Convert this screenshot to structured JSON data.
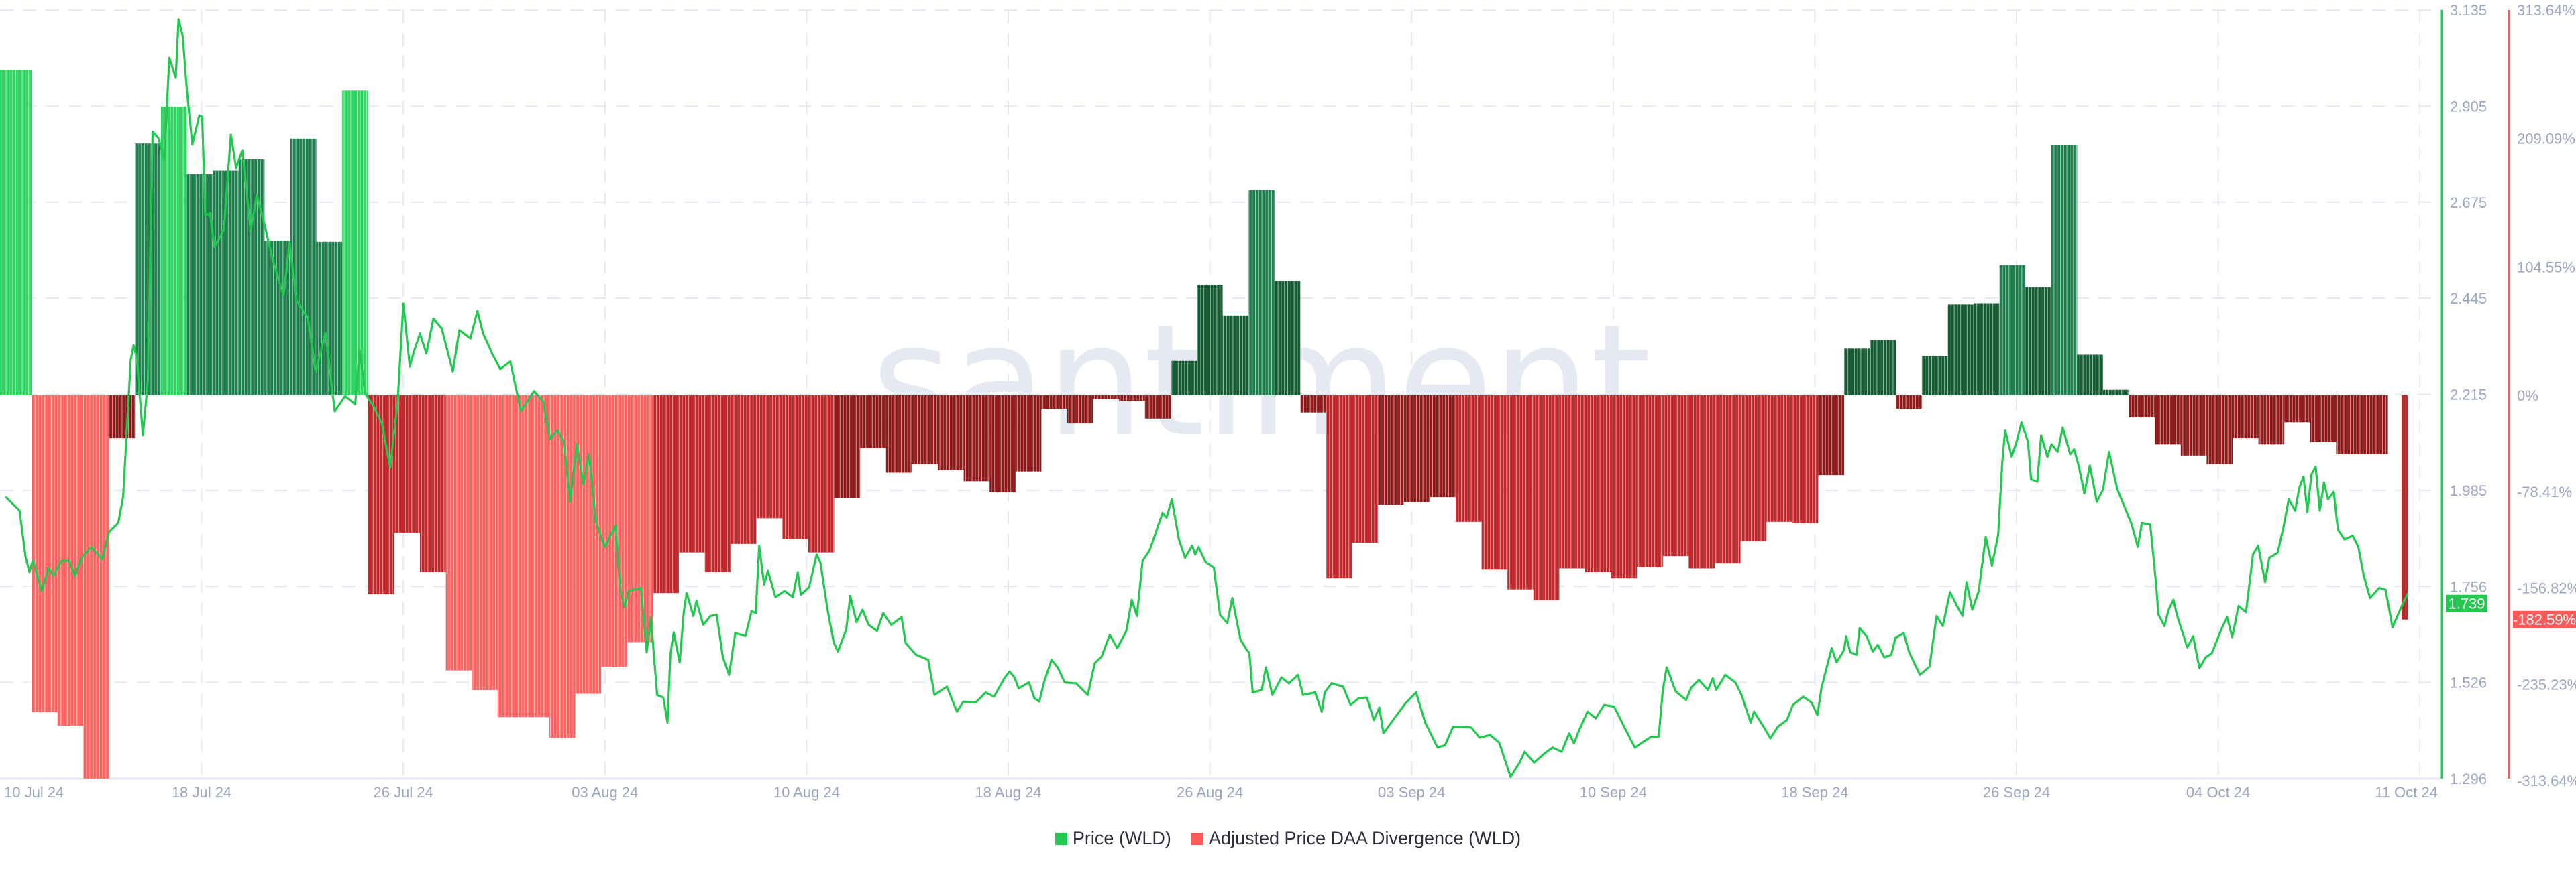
{
  "watermark": ".santiment.",
  "colors": {
    "price_line": "#22c84f",
    "price_axis": "#22c84f",
    "divergence_axis": "#ff5a5a",
    "green_high": "#2fd35f",
    "green_mid": "#1f7f4e",
    "green_low": "#165c33",
    "red_high": "#ff6262",
    "red_mid": "#c0282a",
    "red_low": "#8e1a1a",
    "grid": "#e6e8f2"
  },
  "chart_data": {
    "type": "bar+line",
    "title": "",
    "x_ticks": [
      "10 Jul 24",
      "18 Jul 24",
      "26 Jul 24",
      "03 Aug 24",
      "10 Aug 24",
      "18 Aug 24",
      "26 Aug 24",
      "03 Sep 24",
      "10 Sep 24",
      "18 Sep 24",
      "26 Sep 24",
      "04 Oct 24",
      "11 Oct 24"
    ],
    "x_unit": "days since 10 Jul 24",
    "price_axis": {
      "label": "Price (WLD)",
      "ylim": [
        1.296,
        3.135
      ],
      "ticks": [
        "3.135",
        "2.905",
        "2.675",
        "2.445",
        "2.215",
        "1.985",
        "1.756",
        "1.526",
        "1.296"
      ],
      "current": "1.739",
      "current_value": 1.739
    },
    "divergence_axis": {
      "label": "Adjusted Price DAA Divergence (WLD)",
      "ylim": [
        -313.64,
        313.64
      ],
      "ticks": [
        "313.64%",
        "209.09%",
        "104.55%",
        "0%",
        "-78.41%",
        "-156.82%",
        "-235.23%",
        "-313.64%"
      ],
      "tick_values": [
        313.64,
        209.09,
        104.55,
        0,
        -78.41,
        -156.82,
        -235.23,
        -313.64
      ],
      "current": "-182.59%"
    },
    "legend": [
      {
        "name": "Price (WLD)",
        "color": "#22c84f"
      },
      {
        "name": "Adjusted Price DAA Divergence (WLD)",
        "color": "#ff5a5a"
      }
    ],
    "legend_position": "bottom-center",
    "grid": true,
    "divergence_daily": [
      265,
      -258,
      -269,
      -313,
      -35,
      205,
      235,
      180,
      183,
      192,
      126,
      209,
      125,
      248,
      -162,
      -112,
      -144,
      -224,
      -240,
      -262,
      -262,
      -279,
      -243,
      -221,
      -201,
      -161,
      -128,
      -144,
      -121,
      -100,
      -117,
      -128,
      -84,
      -43,
      -63,
      -56,
      -61,
      -70,
      -79,
      -62,
      -11,
      -23,
      -3,
      -4.5,
      -19,
      28,
      90,
      65,
      167,
      93,
      -14,
      -149,
      -120,
      -89,
      -87,
      -83,
      -103,
      -142,
      -158,
      -167,
      -141,
      -144,
      -149,
      -140,
      -131,
      -141,
      -137,
      -119,
      -103,
      -104,
      -65,
      38,
      45,
      -11,
      32,
      74,
      75,
      106,
      88,
      204,
      33,
      4.5,
      -18,
      -40,
      -49,
      -56,
      -35,
      -40,
      -22,
      -38,
      -48,
      -48,
      -182.59
    ],
    "price": [
      [
        0,
        1.97
      ],
      [
        0.54,
        1.937
      ],
      [
        0.77,
        1.826
      ],
      [
        0.92,
        1.79
      ],
      [
        1.05,
        1.817
      ],
      [
        1.4,
        1.745
      ],
      [
        1.65,
        1.799
      ],
      [
        1.85,
        1.782
      ],
      [
        2.16,
        1.817
      ],
      [
        2.45,
        1.817
      ],
      [
        2.67,
        1.781
      ],
      [
        2.96,
        1.826
      ],
      [
        3.3,
        1.85
      ],
      [
        3.72,
        1.82
      ],
      [
        3.99,
        1.886
      ],
      [
        4.35,
        1.908
      ],
      [
        4.54,
        1.97
      ],
      [
        4.83,
        2.297
      ],
      [
        4.94,
        2.333
      ],
      [
        5.07,
        2.301
      ],
      [
        5.3,
        2.117
      ],
      [
        5.49,
        2.246
      ],
      [
        5.68,
        2.844
      ],
      [
        5.9,
        2.829
      ],
      [
        6.13,
        2.777
      ],
      [
        6.32,
        3.021
      ],
      [
        6.57,
        2.973
      ],
      [
        6.68,
        3.113
      ],
      [
        6.84,
        3.073
      ],
      [
        7.0,
        2.943
      ],
      [
        7.21,
        2.813
      ],
      [
        7.48,
        2.883
      ],
      [
        7.59,
        2.88
      ],
      [
        7.71,
        2.643
      ],
      [
        7.9,
        2.649
      ],
      [
        8.06,
        2.568
      ],
      [
        8.43,
        2.609
      ],
      [
        8.7,
        2.837
      ],
      [
        8.9,
        2.757
      ],
      [
        9.14,
        2.799
      ],
      [
        9.46,
        2.607
      ],
      [
        9.7,
        2.691
      ],
      [
        9.94,
        2.637
      ],
      [
        10.33,
        2.535
      ],
      [
        10.73,
        2.451
      ],
      [
        10.97,
        2.577
      ],
      [
        11.24,
        2.439
      ],
      [
        11.68,
        2.397
      ],
      [
        11.97,
        2.27
      ],
      [
        12.35,
        2.361
      ],
      [
        12.71,
        2.175
      ],
      [
        13.11,
        2.211
      ],
      [
        13.5,
        2.192
      ],
      [
        13.67,
        2.319
      ],
      [
        13.9,
        2.216
      ],
      [
        14.22,
        2.186
      ],
      [
        14.54,
        2.144
      ],
      [
        14.85,
        2.04
      ],
      [
        15.14,
        2.198
      ],
      [
        15.36,
        2.433
      ],
      [
        15.61,
        2.282
      ],
      [
        15.77,
        2.318
      ],
      [
        16.0,
        2.361
      ],
      [
        16.25,
        2.313
      ],
      [
        16.52,
        2.397
      ],
      [
        16.84,
        2.373
      ],
      [
        17.27,
        2.27
      ],
      [
        17.52,
        2.369
      ],
      [
        17.95,
        2.349
      ],
      [
        18.22,
        2.415
      ],
      [
        18.44,
        2.361
      ],
      [
        18.79,
        2.313
      ],
      [
        19.1,
        2.276
      ],
      [
        19.49,
        2.294
      ],
      [
        19.9,
        2.175
      ],
      [
        20.41,
        2.223
      ],
      [
        20.76,
        2.198
      ],
      [
        21.01,
        2.108
      ],
      [
        21.3,
        2.129
      ],
      [
        21.55,
        2.102
      ],
      [
        21.8,
        1.958
      ],
      [
        22.06,
        2.096
      ],
      [
        22.31,
        2.0
      ],
      [
        22.53,
        2.072
      ],
      [
        22.79,
        1.91
      ],
      [
        23.14,
        1.85
      ],
      [
        23.55,
        1.901
      ],
      [
        23.74,
        1.742
      ],
      [
        23.9,
        1.706
      ],
      [
        24.06,
        1.745
      ],
      [
        24.53,
        1.752
      ],
      [
        24.76,
        1.598
      ],
      [
        24.92,
        1.682
      ],
      [
        25.16,
        1.496
      ],
      [
        25.4,
        1.49
      ],
      [
        25.56,
        1.43
      ],
      [
        25.67,
        1.592
      ],
      [
        25.8,
        1.646
      ],
      [
        26.03,
        1.574
      ],
      [
        26.19,
        1.694
      ],
      [
        26.3,
        1.74
      ],
      [
        26.56,
        1.685
      ],
      [
        26.68,
        1.721
      ],
      [
        26.94,
        1.664
      ],
      [
        27.22,
        1.685
      ],
      [
        27.46,
        1.688
      ],
      [
        27.7,
        1.586
      ],
      [
        27.94,
        1.544
      ],
      [
        28.18,
        1.644
      ],
      [
        28.57,
        1.637
      ],
      [
        28.81,
        1.697
      ],
      [
        28.97,
        1.692
      ],
      [
        29.1,
        1.853
      ],
      [
        29.29,
        1.76
      ],
      [
        29.44,
        1.793
      ],
      [
        29.73,
        1.73
      ],
      [
        30.08,
        1.745
      ],
      [
        30.4,
        1.73
      ],
      [
        30.59,
        1.79
      ],
      [
        30.71,
        1.736
      ],
      [
        31.03,
        1.754
      ],
      [
        31.32,
        1.832
      ],
      [
        31.47,
        1.812
      ],
      [
        31.74,
        1.7
      ],
      [
        31.98,
        1.622
      ],
      [
        32.14,
        1.6
      ],
      [
        32.46,
        1.652
      ],
      [
        32.62,
        1.733
      ],
      [
        32.86,
        1.67
      ],
      [
        33.09,
        1.7
      ],
      [
        33.33,
        1.664
      ],
      [
        33.65,
        1.649
      ],
      [
        33.89,
        1.692
      ],
      [
        34.2,
        1.664
      ],
      [
        34.6,
        1.682
      ],
      [
        34.76,
        1.62
      ],
      [
        35.16,
        1.592
      ],
      [
        35.63,
        1.58
      ],
      [
        35.87,
        1.496
      ],
      [
        36.35,
        1.516
      ],
      [
        36.74,
        1.456
      ],
      [
        36.98,
        1.48
      ],
      [
        37.46,
        1.478
      ],
      [
        37.85,
        1.502
      ],
      [
        38.17,
        1.492
      ],
      [
        38.57,
        1.536
      ],
      [
        38.77,
        1.552
      ],
      [
        38.96,
        1.538
      ],
      [
        39.12,
        1.512
      ],
      [
        39.52,
        1.526
      ],
      [
        39.73,
        1.488
      ],
      [
        39.92,
        1.48
      ],
      [
        40.11,
        1.528
      ],
      [
        40.39,
        1.58
      ],
      [
        40.63,
        1.562
      ],
      [
        40.9,
        1.526
      ],
      [
        41.34,
        1.524
      ],
      [
        41.79,
        1.496
      ],
      [
        42.06,
        1.572
      ],
      [
        42.33,
        1.588
      ],
      [
        42.64,
        1.64
      ],
      [
        42.93,
        1.608
      ],
      [
        43.28,
        1.649
      ],
      [
        43.49,
        1.724
      ],
      [
        43.69,
        1.685
      ],
      [
        43.91,
        1.817
      ],
      [
        44.17,
        1.841
      ],
      [
        44.36,
        1.874
      ],
      [
        44.68,
        1.932
      ],
      [
        44.83,
        1.92
      ],
      [
        45.04,
        1.964
      ],
      [
        45.31,
        1.868
      ],
      [
        45.55,
        1.824
      ],
      [
        45.82,
        1.853
      ],
      [
        45.94,
        1.832
      ],
      [
        46.07,
        1.85
      ],
      [
        46.34,
        1.814
      ],
      [
        46.66,
        1.8
      ],
      [
        46.9,
        1.688
      ],
      [
        47.18,
        1.668
      ],
      [
        47.37,
        1.728
      ],
      [
        47.69,
        1.628
      ],
      [
        47.93,
        1.604
      ],
      [
        48.03,
        1.596
      ],
      [
        48.16,
        1.502
      ],
      [
        48.51,
        1.508
      ],
      [
        48.67,
        1.562
      ],
      [
        48.92,
        1.496
      ],
      [
        49.27,
        1.538
      ],
      [
        49.56,
        1.524
      ],
      [
        49.91,
        1.544
      ],
      [
        50.1,
        1.496
      ],
      [
        50.57,
        1.502
      ],
      [
        50.83,
        1.456
      ],
      [
        50.94,
        1.502
      ],
      [
        51.21,
        1.524
      ],
      [
        51.65,
        1.516
      ],
      [
        51.94,
        1.472
      ],
      [
        52.25,
        1.488
      ],
      [
        52.57,
        1.49
      ],
      [
        52.84,
        1.436
      ],
      [
        53.05,
        1.466
      ],
      [
        53.21,
        1.404
      ],
      [
        53.68,
        1.444
      ],
      [
        54.06,
        1.476
      ],
      [
        54.47,
        1.502
      ],
      [
        54.82,
        1.43
      ],
      [
        55.3,
        1.37
      ],
      [
        55.59,
        1.376
      ],
      [
        55.9,
        1.42
      ],
      [
        56.25,
        1.42
      ],
      [
        56.6,
        1.418
      ],
      [
        56.92,
        1.394
      ],
      [
        57.33,
        1.4
      ],
      [
        57.68,
        1.382
      ],
      [
        58.12,
        1.3
      ],
      [
        58.47,
        1.334
      ],
      [
        58.66,
        1.36
      ],
      [
        59.03,
        1.334
      ],
      [
        59.43,
        1.356
      ],
      [
        59.74,
        1.37
      ],
      [
        60.09,
        1.36
      ],
      [
        60.38,
        1.404
      ],
      [
        60.57,
        1.38
      ],
      [
        60.77,
        1.412
      ],
      [
        61.09,
        1.456
      ],
      [
        61.41,
        1.44
      ],
      [
        61.73,
        1.472
      ],
      [
        62.12,
        1.468
      ],
      [
        62.52,
        1.418
      ],
      [
        62.92,
        1.37
      ],
      [
        63.2,
        1.382
      ],
      [
        63.55,
        1.396
      ],
      [
        63.84,
        1.396
      ],
      [
        64.0,
        1.508
      ],
      [
        64.15,
        1.562
      ],
      [
        64.5,
        1.504
      ],
      [
        64.9,
        1.484
      ],
      [
        65.1,
        1.514
      ],
      [
        65.39,
        1.532
      ],
      [
        65.74,
        1.508
      ],
      [
        65.93,
        1.536
      ],
      [
        66.06,
        1.508
      ],
      [
        66.41,
        1.544
      ],
      [
        66.8,
        1.526
      ],
      [
        67.04,
        1.496
      ],
      [
        67.39,
        1.43
      ],
      [
        67.52,
        1.456
      ],
      [
        67.91,
        1.418
      ],
      [
        68.15,
        1.392
      ],
      [
        68.44,
        1.42
      ],
      [
        68.79,
        1.436
      ],
      [
        69.02,
        1.472
      ],
      [
        69.42,
        1.492
      ],
      [
        69.74,
        1.478
      ],
      [
        69.97,
        1.448
      ],
      [
        70.13,
        1.514
      ],
      [
        70.33,
        1.562
      ],
      [
        70.52,
        1.608
      ],
      [
        70.71,
        1.574
      ],
      [
        71.0,
        1.604
      ],
      [
        71.08,
        1.636
      ],
      [
        71.24,
        1.598
      ],
      [
        71.48,
        1.592
      ],
      [
        71.6,
        1.656
      ],
      [
        71.87,
        1.636
      ],
      [
        72.11,
        1.6
      ],
      [
        72.3,
        1.616
      ],
      [
        72.55,
        1.586
      ],
      [
        72.82,
        1.592
      ],
      [
        72.98,
        1.632
      ],
      [
        73.3,
        1.644
      ],
      [
        73.51,
        1.598
      ],
      [
        73.93,
        1.544
      ],
      [
        74.3,
        1.564
      ],
      [
        74.57,
        1.685
      ],
      [
        74.81,
        1.661
      ],
      [
        75.09,
        1.742
      ],
      [
        75.36,
        1.709
      ],
      [
        75.57,
        1.685
      ],
      [
        75.73,
        1.766
      ],
      [
        75.95,
        1.7
      ],
      [
        76.2,
        1.745
      ],
      [
        76.47,
        1.874
      ],
      [
        76.71,
        1.805
      ],
      [
        76.95,
        1.88
      ],
      [
        77.11,
        2.054
      ],
      [
        77.22,
        2.129
      ],
      [
        77.47,
        2.066
      ],
      [
        77.66,
        2.102
      ],
      [
        77.85,
        2.148
      ],
      [
        78.1,
        2.102
      ],
      [
        78.22,
        2.012
      ],
      [
        78.46,
        2.006
      ],
      [
        78.61,
        2.117
      ],
      [
        78.85,
        2.066
      ],
      [
        79.01,
        2.096
      ],
      [
        79.25,
        2.078
      ],
      [
        79.44,
        2.136
      ],
      [
        79.73,
        2.072
      ],
      [
        79.88,
        2.084
      ],
      [
        80.07,
        2.042
      ],
      [
        80.28,
        1.978
      ],
      [
        80.49,
        2.045
      ],
      [
        80.76,
        1.958
      ],
      [
        81.0,
        1.988
      ],
      [
        81.23,
        2.078
      ],
      [
        81.55,
        1.988
      ],
      [
        81.87,
        1.94
      ],
      [
        82.11,
        1.904
      ],
      [
        82.34,
        1.85
      ],
      [
        82.5,
        1.908
      ],
      [
        82.82,
        1.904
      ],
      [
        83.03,
        1.772
      ],
      [
        83.14,
        1.688
      ],
      [
        83.37,
        1.661
      ],
      [
        83.53,
        1.7
      ],
      [
        83.72,
        1.724
      ],
      [
        83.85,
        1.688
      ],
      [
        84.25,
        1.61
      ],
      [
        84.48,
        1.636
      ],
      [
        84.72,
        1.56
      ],
      [
        84.96,
        1.586
      ],
      [
        85.2,
        1.596
      ],
      [
        85.6,
        1.658
      ],
      [
        85.79,
        1.682
      ],
      [
        85.99,
        1.634
      ],
      [
        86.23,
        1.709
      ],
      [
        86.52,
        1.694
      ],
      [
        86.79,
        1.832
      ],
      [
        86.99,
        1.853
      ],
      [
        87.26,
        1.766
      ],
      [
        87.42,
        1.824
      ],
      [
        87.74,
        1.836
      ],
      [
        87.97,
        1.898
      ],
      [
        88.17,
        1.964
      ],
      [
        88.42,
        1.937
      ],
      [
        88.58,
        1.992
      ],
      [
        88.74,
        2.018
      ],
      [
        88.89,
        1.934
      ],
      [
        89.05,
        2.024
      ],
      [
        89.21,
        2.042
      ],
      [
        89.37,
        1.937
      ],
      [
        89.53,
        2.004
      ],
      [
        89.69,
        1.964
      ],
      [
        89.91,
        1.982
      ],
      [
        90.07,
        1.892
      ],
      [
        90.32,
        1.868
      ],
      [
        90.64,
        1.877
      ],
      [
        90.86,
        1.85
      ],
      [
        91.07,
        1.781
      ],
      [
        91.31,
        1.728
      ],
      [
        91.66,
        1.752
      ],
      [
        91.91,
        1.748
      ],
      [
        92.18,
        1.658
      ],
      [
        92.5,
        1.704
      ],
      [
        92.77,
        1.739
      ]
    ]
  }
}
